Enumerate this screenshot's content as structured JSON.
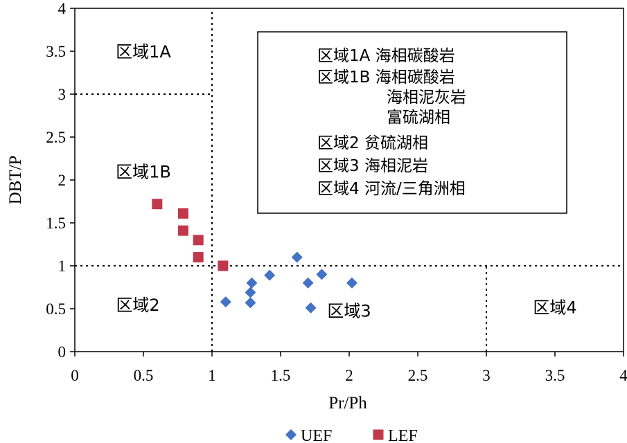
{
  "chart_data": {
    "type": "scatter",
    "xlabel": "Pr/Ph",
    "ylabel": "DBT/P",
    "xlim": [
      0,
      4
    ],
    "ylim": [
      0,
      4
    ],
    "x_ticks": [
      "0",
      "0.5",
      "1",
      "1.5",
      "2",
      "2.5",
      "3",
      "3.5",
      "4"
    ],
    "y_ticks": [
      "0",
      "0.5",
      "1",
      "1.5",
      "2",
      "2.5",
      "3",
      "3.5",
      "4"
    ],
    "series": [
      {
        "name": "UEF",
        "marker": "diamond",
        "color": "#4472c4",
        "points": [
          {
            "x": 1.1,
            "y": 0.58
          },
          {
            "x": 1.28,
            "y": 0.57
          },
          {
            "x": 1.28,
            "y": 0.69
          },
          {
            "x": 1.29,
            "y": 0.8
          },
          {
            "x": 1.42,
            "y": 0.89
          },
          {
            "x": 1.62,
            "y": 1.1
          },
          {
            "x": 1.7,
            "y": 0.8
          },
          {
            "x": 1.72,
            "y": 0.51
          },
          {
            "x": 1.8,
            "y": 0.9
          },
          {
            "x": 2.02,
            "y": 0.8
          }
        ]
      },
      {
        "name": "LEF",
        "marker": "square",
        "color": "#c0384b",
        "points": [
          {
            "x": 0.6,
            "y": 1.72
          },
          {
            "x": 0.79,
            "y": 1.61
          },
          {
            "x": 0.79,
            "y": 1.41
          },
          {
            "x": 0.9,
            "y": 1.3
          },
          {
            "x": 0.9,
            "y": 1.1
          },
          {
            "x": 1.08,
            "y": 1.0
          }
        ]
      }
    ],
    "region_lines": [
      {
        "axis": "x",
        "value": 1,
        "from": 0,
        "to": 4
      },
      {
        "axis": "y",
        "value": 3,
        "from": 0,
        "to": 1
      },
      {
        "axis": "y",
        "value": 1,
        "from": 0,
        "to": 4
      },
      {
        "axis": "x",
        "value": 3,
        "from": 0,
        "to": 1
      }
    ],
    "regions": [
      {
        "label": "区域1A",
        "x": 0.5,
        "y": 3.5
      },
      {
        "label": "区域1B",
        "x": 0.5,
        "y": 2.1
      },
      {
        "label": "区域2",
        "x": 0.46,
        "y": 0.55
      },
      {
        "label": "区域3",
        "x": 2.0,
        "y": 0.48
      },
      {
        "label": "区域4",
        "x": 3.5,
        "y": 0.52
      }
    ],
    "legend_box": {
      "lines": [
        "区域1A 海相碳酸岩",
        "区域1B 海相碳酸岩",
        "海相泥灰岩",
        "富硫湖相",
        "区域2  贫硫湖相",
        "区域3  海相泥岩",
        "区域4  河流/三角洲相"
      ]
    },
    "legend": {
      "placement": "bottom-center",
      "entries": [
        "UEF",
        "LEF"
      ]
    }
  }
}
